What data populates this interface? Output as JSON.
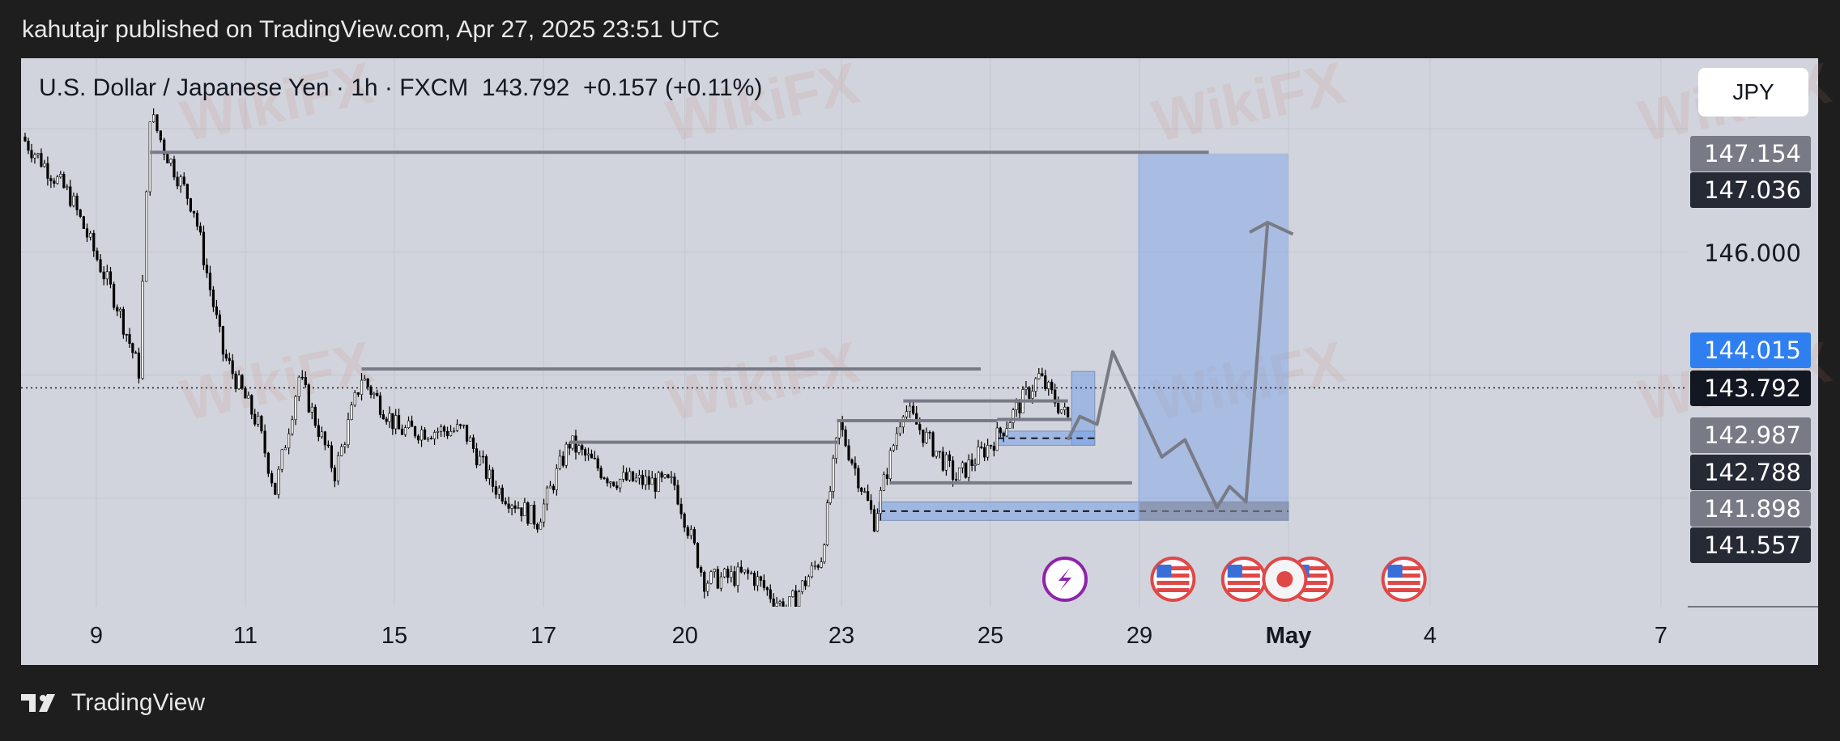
{
  "header": {
    "published": "kahutajr published on TradingView.com, Apr 27, 2025 23:51 UTC"
  },
  "legend": {
    "symbol": "U.S. Dollar / Japanese Yen · 1h · FXCM",
    "price": "143.792",
    "change": "+0.157 (+0.11%)"
  },
  "currency_button": "JPY",
  "price_labels": [
    {
      "text": "147.154",
      "style": "gray"
    },
    {
      "text": "147.036",
      "style": "dark"
    },
    {
      "text": "146.000",
      "style": "plain"
    },
    {
      "text": "144.015",
      "style": "blue"
    },
    {
      "text": "143.792",
      "style": "black"
    },
    {
      "text": "142.987",
      "style": "gray"
    },
    {
      "text": "142.788",
      "style": "dark"
    },
    {
      "text": "141.898",
      "style": "gray"
    },
    {
      "text": "141.557",
      "style": "dark"
    }
  ],
  "colors": {
    "background": "#d1d4dc",
    "candles": "#000000",
    "drawing": "#787b86",
    "zone": "#a6c1eb",
    "accent_blue": "#2962ff",
    "event_red": "#e04848",
    "event_purple": "#8e24aa"
  },
  "footer": {
    "brand": "TradingView"
  },
  "watermark": "WikiFX",
  "chart_data": {
    "type": "candlestick",
    "title": "U.S. Dollar / Japanese Yen · 1h · FXCM",
    "x_ticks": [
      {
        "label": "9",
        "day": 0
      },
      {
        "label": "11",
        "day": 2
      },
      {
        "label": "15",
        "day": 4
      },
      {
        "label": "17",
        "day": 6
      },
      {
        "label": "20",
        "day": 7.9
      },
      {
        "label": "23",
        "day": 10
      },
      {
        "label": "25",
        "day": 12
      },
      {
        "label": "29",
        "day": 14
      },
      {
        "label": "May",
        "day": 16,
        "bold": true
      },
      {
        "label": "4",
        "day": 17.9
      },
      {
        "label": "7",
        "day": 21
      }
    ],
    "y_range": [
      139.5,
      148.7
    ],
    "y_grid": [
      148,
      146,
      144,
      142
    ],
    "last_price": 143.792,
    "price_path": [
      [
        -1.0,
        147.87
      ],
      [
        -0.35,
        146.9
      ],
      [
        0.28,
        145.14
      ],
      [
        0.57,
        144.07
      ],
      [
        0.72,
        148.26
      ],
      [
        0.91,
        147.68
      ],
      [
        1.31,
        146.7
      ],
      [
        1.7,
        144.36
      ],
      [
        2.17,
        143.19
      ],
      [
        2.4,
        142.12
      ],
      [
        2.72,
        143.97
      ],
      [
        3.2,
        142.41
      ],
      [
        3.56,
        143.97
      ],
      [
        4.06,
        143.1
      ],
      [
        4.93,
        143.1
      ],
      [
        5.32,
        142.22
      ],
      [
        5.92,
        141.63
      ],
      [
        6.35,
        142.9
      ],
      [
        6.9,
        142.32
      ],
      [
        7.76,
        142.22
      ],
      [
        8.16,
        140.66
      ],
      [
        8.79,
        140.76
      ],
      [
        9.26,
        140.17
      ],
      [
        9.73,
        141.05
      ],
      [
        9.97,
        143.19
      ],
      [
        10.44,
        141.63
      ],
      [
        10.83,
        143.49
      ],
      [
        11.54,
        142.32
      ],
      [
        12.09,
        143.0
      ],
      [
        12.65,
        143.97
      ],
      [
        13.04,
        143.29
      ]
    ],
    "drawings": {
      "levels": [
        {
          "from": 0.72,
          "to": 14.93,
          "price": 147.62
        },
        {
          "from": 3.56,
          "to": 11.87,
          "price": 144.1
        },
        {
          "from": 6.35,
          "to": 9.94,
          "price": 142.91
        },
        {
          "from": 9.94,
          "to": 12.09,
          "price": 143.26
        },
        {
          "from": 10.83,
          "to": 13.04,
          "price": 143.58
        },
        {
          "from": 10.65,
          "to": 13.9,
          "price": 142.25
        },
        {
          "from": 12.09,
          "to": 13.09,
          "price": 143.28
        }
      ],
      "zones": [
        {
          "from": 13.98,
          "to": 16.0,
          "top": 147.6,
          "bottom": 141.64,
          "kind": "target"
        },
        {
          "from": 13.09,
          "to": 13.4,
          "top": 144.06,
          "bottom": 142.86,
          "kind": "small"
        },
        {
          "from": 12.09,
          "to": 13.4,
          "top": 143.09,
          "bottom": 142.86,
          "kind": "demand",
          "dashed": true
        },
        {
          "from": 10.5,
          "to": 16.0,
          "top": 141.94,
          "bottom": 141.64,
          "kind": "demand",
          "dashed": true
        }
      ],
      "projection": [
        [
          13.04,
          142.95
        ],
        [
          13.2,
          143.33
        ],
        [
          13.43,
          143.2
        ],
        [
          13.64,
          144.38
        ],
        [
          14.3,
          142.67
        ],
        [
          14.61,
          142.95
        ],
        [
          15.04,
          141.85
        ],
        [
          15.21,
          142.19
        ],
        [
          15.43,
          141.94
        ],
        [
          15.72,
          146.48
        ]
      ],
      "arrowhead": [
        [
          15.48,
          146.32
        ],
        [
          15.72,
          146.48
        ],
        [
          16.06,
          146.29
        ]
      ]
    },
    "events": [
      {
        "day": 13.0,
        "icon": "lightning-icon"
      },
      {
        "day": 14.45,
        "icon": "us-flag-icon"
      },
      {
        "day": 15.4,
        "icon": "us-flag-icon"
      },
      {
        "day": 16.3,
        "icon": "us-flag-icon"
      },
      {
        "day": 15.95,
        "icon": "japan-flag-icon"
      },
      {
        "day": 17.55,
        "icon": "us-flag-icon"
      }
    ]
  }
}
